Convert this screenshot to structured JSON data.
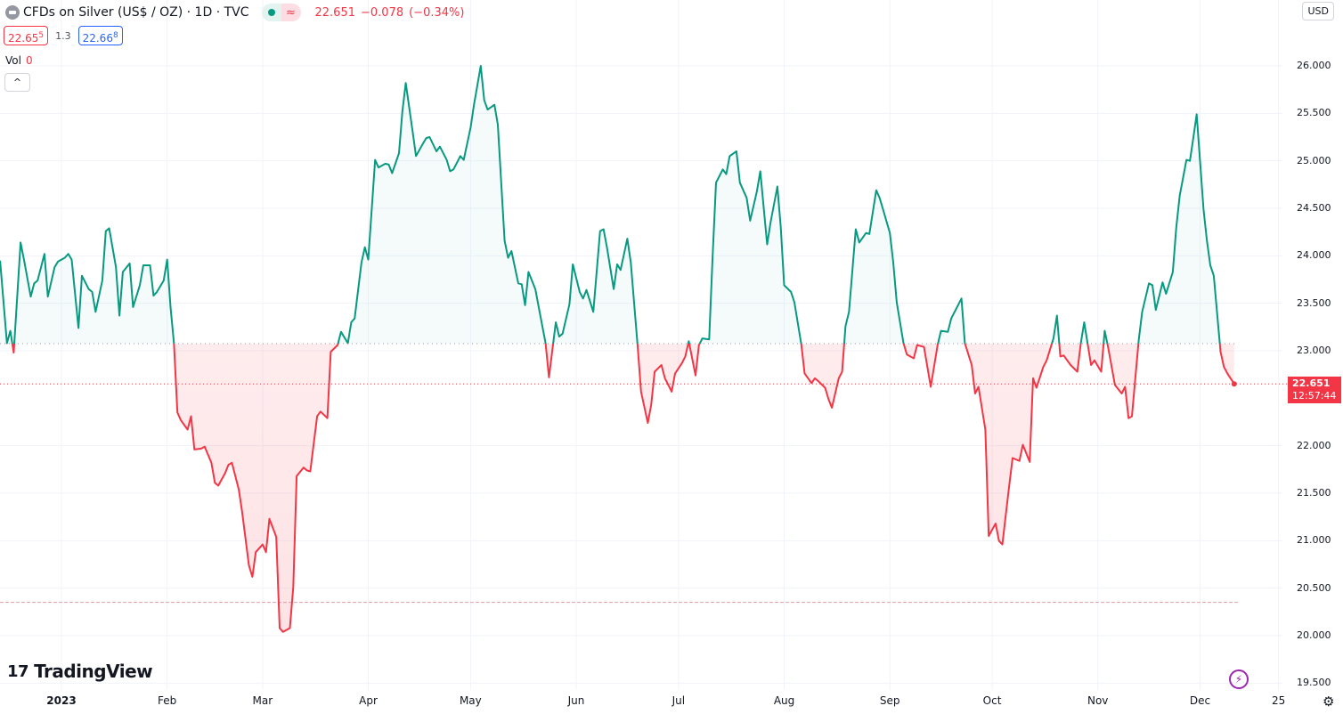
{
  "header": {
    "symbol_title": "CFDs on Silver (US$ / OZ) · 1D · TVC",
    "status_market_icon": "green-dot-icon",
    "status_delayed_icon": "approx-icon",
    "status_delayed_glyph": "≈",
    "last_price": "22.651",
    "change": "−0.078",
    "change_pct": "(−0.34%)"
  },
  "bid_ask": {
    "bid_main": "22.65",
    "bid_sup": "5",
    "spread": "1.3",
    "ask_main": "22.66",
    "ask_sup": "8"
  },
  "volume": {
    "label": "Vol",
    "value": "0"
  },
  "collapse_glyph": "^",
  "currency": "USD",
  "price_tag": {
    "price": "22.651",
    "countdown": "12:57:44"
  },
  "logo_text": "TradingView",
  "colors": {
    "up": "#089981",
    "down": "#f23645",
    "grid": "#f0f3fa",
    "accent": "#9c27b0"
  },
  "chart_data": {
    "type": "area",
    "style": "baseline",
    "baseline": 23.075,
    "reference_line": 20.35,
    "ylim": [
      19.5,
      26.0
    ],
    "xlim": [
      "2022-12-14",
      "2022-12-27"
    ],
    "y_ticks": [
      "26.000",
      "25.500",
      "25.000",
      "24.500",
      "24.000",
      "23.500",
      "23.000",
      "22.000",
      "21.500",
      "21.000",
      "20.500",
      "20.000",
      "19.500"
    ],
    "x_ticks": [
      {
        "label": "2023",
        "date": "2023-01-01"
      },
      {
        "label": "Feb",
        "date": "2023-02-01"
      },
      {
        "label": "Mar",
        "date": "2023-03-01"
      },
      {
        "label": "Apr",
        "date": "2023-04-01"
      },
      {
        "label": "May",
        "date": "2023-05-01"
      },
      {
        "label": "Jun",
        "date": "2023-06-01"
      },
      {
        "label": "Jul",
        "date": "2023-07-01"
      },
      {
        "label": "Aug",
        "date": "2023-08-01"
      },
      {
        "label": "Sep",
        "date": "2023-09-01"
      },
      {
        "label": "Oct",
        "date": "2023-10-01"
      },
      {
        "label": "Nov",
        "date": "2023-11-01"
      },
      {
        "label": "Dec",
        "date": "2023-12-01"
      },
      {
        "label": "25",
        "date": "2023-12-24"
      }
    ],
    "grid": true,
    "points": [
      [
        "2022-12-14",
        23.95
      ],
      [
        "2022-12-16",
        23.08
      ],
      [
        "2022-12-17",
        23.21
      ],
      [
        "2022-12-18",
        22.98
      ],
      [
        "2022-12-20",
        24.14
      ],
      [
        "2022-12-21",
        23.96
      ],
      [
        "2022-12-23",
        23.57
      ],
      [
        "2022-12-24",
        23.71
      ],
      [
        "2022-12-25",
        23.74
      ],
      [
        "2022-12-27",
        24.02
      ],
      [
        "2022-12-28",
        23.57
      ],
      [
        "2022-12-30",
        23.88
      ],
      [
        "2022-12-31",
        23.94
      ],
      [
        "2023-01-02",
        23.98
      ],
      [
        "2023-01-03",
        24.02
      ],
      [
        "2023-01-04",
        23.96
      ],
      [
        "2023-01-06",
        23.24
      ],
      [
        "2023-01-07",
        23.79
      ],
      [
        "2023-01-09",
        23.65
      ],
      [
        "2023-01-10",
        23.62
      ],
      [
        "2023-01-11",
        23.41
      ],
      [
        "2023-01-13",
        23.74
      ],
      [
        "2023-01-14",
        24.26
      ],
      [
        "2023-01-15",
        24.29
      ],
      [
        "2023-01-17",
        23.88
      ],
      [
        "2023-01-18",
        23.37
      ],
      [
        "2023-01-19",
        23.83
      ],
      [
        "2023-01-21",
        23.92
      ],
      [
        "2023-01-22",
        23.46
      ],
      [
        "2023-01-24",
        23.69
      ],
      [
        "2023-01-25",
        23.9
      ],
      [
        "2023-01-27",
        23.9
      ],
      [
        "2023-01-28",
        23.58
      ],
      [
        "2023-01-29",
        23.62
      ],
      [
        "2023-01-31",
        23.74
      ],
      [
        "2023-02-01",
        23.96
      ],
      [
        "2023-02-02",
        23.46
      ],
      [
        "2023-02-03",
        23.08
      ],
      [
        "2023-02-04",
        22.35
      ],
      [
        "2023-02-05",
        22.27
      ],
      [
        "2023-02-07",
        22.17
      ],
      [
        "2023-02-08",
        22.31
      ],
      [
        "2023-02-09",
        21.96
      ],
      [
        "2023-02-11",
        21.97
      ],
      [
        "2023-02-12",
        21.99
      ],
      [
        "2023-02-14",
        21.82
      ],
      [
        "2023-02-15",
        21.61
      ],
      [
        "2023-02-16",
        21.58
      ],
      [
        "2023-02-18",
        21.71
      ],
      [
        "2023-02-19",
        21.8
      ],
      [
        "2023-02-20",
        21.82
      ],
      [
        "2023-02-22",
        21.54
      ],
      [
        "2023-02-23",
        21.3
      ],
      [
        "2023-02-25",
        20.74
      ],
      [
        "2023-02-26",
        20.62
      ],
      [
        "2023-02-27",
        20.88
      ],
      [
        "2023-03-01",
        20.96
      ],
      [
        "2023-03-02",
        20.88
      ],
      [
        "2023-03-03",
        21.23
      ],
      [
        "2023-03-05",
        21.04
      ],
      [
        "2023-03-06",
        20.08
      ],
      [
        "2023-03-07",
        20.04
      ],
      [
        "2023-03-09",
        20.08
      ],
      [
        "2023-03-10",
        20.51
      ],
      [
        "2023-03-11",
        21.68
      ],
      [
        "2023-03-13",
        21.77
      ],
      [
        "2023-03-14",
        21.74
      ],
      [
        "2023-03-15",
        21.73
      ],
      [
        "2023-03-17",
        22.31
      ],
      [
        "2023-03-18",
        22.36
      ],
      [
        "2023-03-20",
        22.29
      ],
      [
        "2023-03-21",
        22.99
      ],
      [
        "2023-03-23",
        23.06
      ],
      [
        "2023-03-24",
        23.2
      ],
      [
        "2023-03-26",
        23.08
      ],
      [
        "2023-03-27",
        23.3
      ],
      [
        "2023-03-28",
        23.34
      ],
      [
        "2023-03-30",
        23.93
      ],
      [
        "2023-03-31",
        24.09
      ],
      [
        "2023-04-01",
        23.96
      ],
      [
        "2023-04-03",
        25.01
      ],
      [
        "2023-04-04",
        24.93
      ],
      [
        "2023-04-06",
        24.97
      ],
      [
        "2023-04-07",
        24.96
      ],
      [
        "2023-04-08",
        24.87
      ],
      [
        "2023-04-10",
        25.08
      ],
      [
        "2023-04-11",
        25.52
      ],
      [
        "2023-04-12",
        25.82
      ],
      [
        "2023-04-14",
        25.31
      ],
      [
        "2023-04-15",
        25.05
      ],
      [
        "2023-04-17",
        25.18
      ],
      [
        "2023-04-18",
        25.24
      ],
      [
        "2023-04-19",
        25.25
      ],
      [
        "2023-04-21",
        25.1
      ],
      [
        "2023-04-22",
        25.15
      ],
      [
        "2023-04-24",
        25.01
      ],
      [
        "2023-04-25",
        24.89
      ],
      [
        "2023-04-26",
        24.91
      ],
      [
        "2023-04-28",
        25.05
      ],
      [
        "2023-04-29",
        25.01
      ],
      [
        "2023-05-01",
        25.35
      ],
      [
        "2023-05-02",
        25.59
      ],
      [
        "2023-05-04",
        26.0
      ],
      [
        "2023-05-05",
        25.64
      ],
      [
        "2023-05-06",
        25.54
      ],
      [
        "2023-05-08",
        25.59
      ],
      [
        "2023-05-09",
        25.38
      ],
      [
        "2023-05-11",
        24.16
      ],
      [
        "2023-05-12",
        23.98
      ],
      [
        "2023-05-13",
        24.05
      ],
      [
        "2023-05-15",
        23.71
      ],
      [
        "2023-05-16",
        23.7
      ],
      [
        "2023-05-17",
        23.48
      ],
      [
        "2023-05-18",
        23.83
      ],
      [
        "2023-05-20",
        23.65
      ],
      [
        "2023-05-21",
        23.46
      ],
      [
        "2023-05-23",
        23.08
      ],
      [
        "2023-05-24",
        22.72
      ],
      [
        "2023-05-26",
        23.3
      ],
      [
        "2023-05-27",
        23.15
      ],
      [
        "2023-05-28",
        23.18
      ],
      [
        "2023-05-30",
        23.49
      ],
      [
        "2023-05-31",
        23.91
      ],
      [
        "2023-06-02",
        23.62
      ],
      [
        "2023-06-03",
        23.55
      ],
      [
        "2023-06-04",
        23.64
      ],
      [
        "2023-06-06",
        23.41
      ],
      [
        "2023-06-08",
        24.26
      ],
      [
        "2023-06-09",
        24.28
      ],
      [
        "2023-06-10",
        24.09
      ],
      [
        "2023-06-12",
        23.65
      ],
      [
        "2023-06-13",
        23.91
      ],
      [
        "2023-06-14",
        23.85
      ],
      [
        "2023-06-16",
        24.18
      ],
      [
        "2023-06-17",
        23.93
      ],
      [
        "2023-06-19",
        23.06
      ],
      [
        "2023-06-20",
        22.57
      ],
      [
        "2023-06-22",
        22.24
      ],
      [
        "2023-06-23",
        22.43
      ],
      [
        "2023-06-24",
        22.78
      ],
      [
        "2023-06-26",
        22.85
      ],
      [
        "2023-06-27",
        22.71
      ],
      [
        "2023-06-29",
        22.57
      ],
      [
        "2023-06-30",
        22.76
      ],
      [
        "2023-07-02",
        22.87
      ],
      [
        "2023-07-03",
        22.94
      ],
      [
        "2023-07-04",
        23.1
      ],
      [
        "2023-07-06",
        22.74
      ],
      [
        "2023-07-07",
        23.06
      ],
      [
        "2023-07-08",
        23.13
      ],
      [
        "2023-07-10",
        23.12
      ],
      [
        "2023-07-11",
        23.98
      ],
      [
        "2023-07-12",
        24.77
      ],
      [
        "2023-07-14",
        24.91
      ],
      [
        "2023-07-15",
        24.86
      ],
      [
        "2023-07-16",
        25.05
      ],
      [
        "2023-07-18",
        25.1
      ],
      [
        "2023-07-19",
        24.77
      ],
      [
        "2023-07-21",
        24.61
      ],
      [
        "2023-07-22",
        24.37
      ],
      [
        "2023-07-24",
        24.68
      ],
      [
        "2023-07-25",
        24.89
      ],
      [
        "2023-07-27",
        24.12
      ],
      [
        "2023-07-28",
        24.35
      ],
      [
        "2023-07-30",
        24.73
      ],
      [
        "2023-07-31",
        24.3
      ],
      [
        "2023-08-01",
        23.69
      ],
      [
        "2023-08-03",
        23.62
      ],
      [
        "2023-08-04",
        23.51
      ],
      [
        "2023-08-06",
        23.07
      ],
      [
        "2023-08-07",
        22.76
      ],
      [
        "2023-08-09",
        22.66
      ],
      [
        "2023-08-10",
        22.71
      ],
      [
        "2023-08-11",
        22.68
      ],
      [
        "2023-08-13",
        22.61
      ],
      [
        "2023-08-14",
        22.49
      ],
      [
        "2023-08-15",
        22.4
      ],
      [
        "2023-08-17",
        22.71
      ],
      [
        "2023-08-18",
        22.78
      ],
      [
        "2023-08-19",
        23.26
      ],
      [
        "2023-08-20",
        23.41
      ],
      [
        "2023-08-22",
        24.28
      ],
      [
        "2023-08-23",
        24.14
      ],
      [
        "2023-08-25",
        24.24
      ],
      [
        "2023-08-26",
        24.23
      ],
      [
        "2023-08-28",
        24.69
      ],
      [
        "2023-08-29",
        24.61
      ],
      [
        "2023-08-30",
        24.49
      ],
      [
        "2023-09-01",
        24.24
      ],
      [
        "2023-09-02",
        23.93
      ],
      [
        "2023-09-03",
        23.51
      ],
      [
        "2023-09-05",
        23.08
      ],
      [
        "2023-09-06",
        22.96
      ],
      [
        "2023-09-08",
        22.92
      ],
      [
        "2023-09-09",
        23.06
      ],
      [
        "2023-09-11",
        23.04
      ],
      [
        "2023-09-12",
        22.83
      ],
      [
        "2023-09-13",
        22.62
      ],
      [
        "2023-09-15",
        23.06
      ],
      [
        "2023-09-16",
        23.21
      ],
      [
        "2023-09-18",
        23.2
      ],
      [
        "2023-09-19",
        23.34
      ],
      [
        "2023-09-20",
        23.41
      ],
      [
        "2023-09-22",
        23.55
      ],
      [
        "2023-09-23",
        23.08
      ],
      [
        "2023-09-25",
        22.85
      ],
      [
        "2023-09-26",
        22.55
      ],
      [
        "2023-09-27",
        22.62
      ],
      [
        "2023-09-29",
        22.17
      ],
      [
        "2023-09-30",
        21.05
      ],
      [
        "2023-10-02",
        21.18
      ],
      [
        "2023-10-03",
        21.0
      ],
      [
        "2023-10-04",
        20.96
      ],
      [
        "2023-10-06",
        21.58
      ],
      [
        "2023-10-07",
        21.87
      ],
      [
        "2023-10-09",
        21.84
      ],
      [
        "2023-10-10",
        22.01
      ],
      [
        "2023-10-12",
        21.83
      ],
      [
        "2023-10-13",
        22.71
      ],
      [
        "2023-10-14",
        22.61
      ],
      [
        "2023-10-16",
        22.83
      ],
      [
        "2023-10-17",
        22.9
      ],
      [
        "2023-10-19",
        23.13
      ],
      [
        "2023-10-20",
        23.37
      ],
      [
        "2023-10-21",
        22.94
      ],
      [
        "2023-10-22",
        22.95
      ],
      [
        "2023-10-24",
        22.85
      ],
      [
        "2023-10-26",
        22.78
      ],
      [
        "2023-10-27",
        23.08
      ],
      [
        "2023-10-28",
        23.3
      ],
      [
        "2023-10-30",
        22.85
      ],
      [
        "2023-10-31",
        22.9
      ],
      [
        "2023-11-02",
        22.78
      ],
      [
        "2023-11-03",
        23.21
      ],
      [
        "2023-11-04",
        23.04
      ],
      [
        "2023-11-06",
        22.64
      ],
      [
        "2023-11-08",
        22.55
      ],
      [
        "2023-11-09",
        22.62
      ],
      [
        "2023-11-10",
        22.29
      ],
      [
        "2023-11-11",
        22.31
      ],
      [
        "2023-11-13",
        23.11
      ],
      [
        "2023-11-14",
        23.41
      ],
      [
        "2023-11-16",
        23.71
      ],
      [
        "2023-11-17",
        23.69
      ],
      [
        "2023-11-18",
        23.43
      ],
      [
        "2023-11-20",
        23.72
      ],
      [
        "2023-11-21",
        23.6
      ],
      [
        "2023-11-23",
        23.83
      ],
      [
        "2023-11-24",
        24.3
      ],
      [
        "2023-11-25",
        24.63
      ],
      [
        "2023-11-27",
        25.01
      ],
      [
        "2023-11-28",
        25.0
      ],
      [
        "2023-11-29",
        25.24
      ],
      [
        "2023-11-30",
        25.49
      ],
      [
        "2023-12-02",
        24.49
      ],
      [
        "2023-12-03",
        24.16
      ],
      [
        "2023-12-04",
        23.9
      ],
      [
        "2023-12-05",
        23.79
      ],
      [
        "2023-12-07",
        22.99
      ],
      [
        "2023-12-08",
        22.83
      ],
      [
        "2023-12-09",
        22.76
      ],
      [
        "2023-12-11",
        22.651
      ]
    ]
  }
}
